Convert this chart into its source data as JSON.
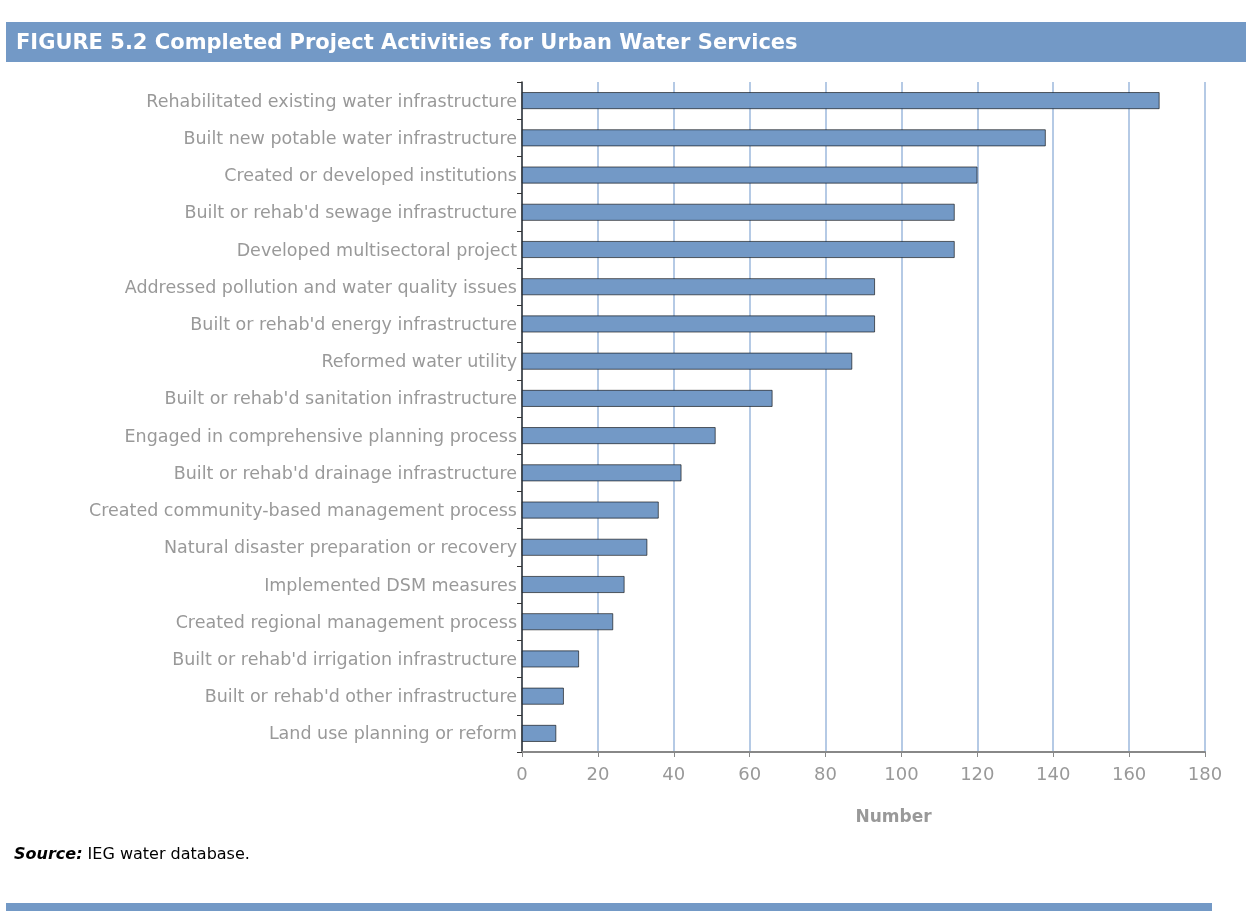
{
  "chart_data": {
    "type": "bar",
    "orientation": "horizontal",
    "title": "FIGURE 5.2 Completed Project Activities for Urban Water Services",
    "xlabel": "Number",
    "categories": [
      "Rehabilitated existing water infrastructure",
      "Built new potable water infrastructure",
      "Created or developed institutions",
      "Built or rehab'd sewage infrastructure",
      "Developed multisectoral project",
      "Addressed pollution and water quality issues",
      "Built or rehab'd energy infrastructure",
      "Reformed water utility",
      "Built or rehab'd sanitation infrastructure",
      "Engaged in comprehensive planning process",
      "Built or rehab'd drainage infrastructure",
      "Created community-based management process",
      "Natural disaster preparation or recovery",
      "Implemented DSM measures",
      "Created regional management process",
      "Built or rehab'd irrigation infrastructure",
      "Built or rehab'd other infrastructure",
      "Land use planning or reform"
    ],
    "values": [
      168,
      138,
      120,
      114,
      114,
      93,
      93,
      87,
      66,
      51,
      42,
      36,
      33,
      27,
      24,
      15,
      11,
      9
    ],
    "color": "#7399c6",
    "xlim": [
      0,
      180
    ],
    "xticks": [
      0,
      20,
      40,
      60,
      80,
      100,
      120,
      140,
      160,
      180
    ],
    "grid": "x",
    "annotations": [
      "Source: IEG water database."
    ]
  }
}
